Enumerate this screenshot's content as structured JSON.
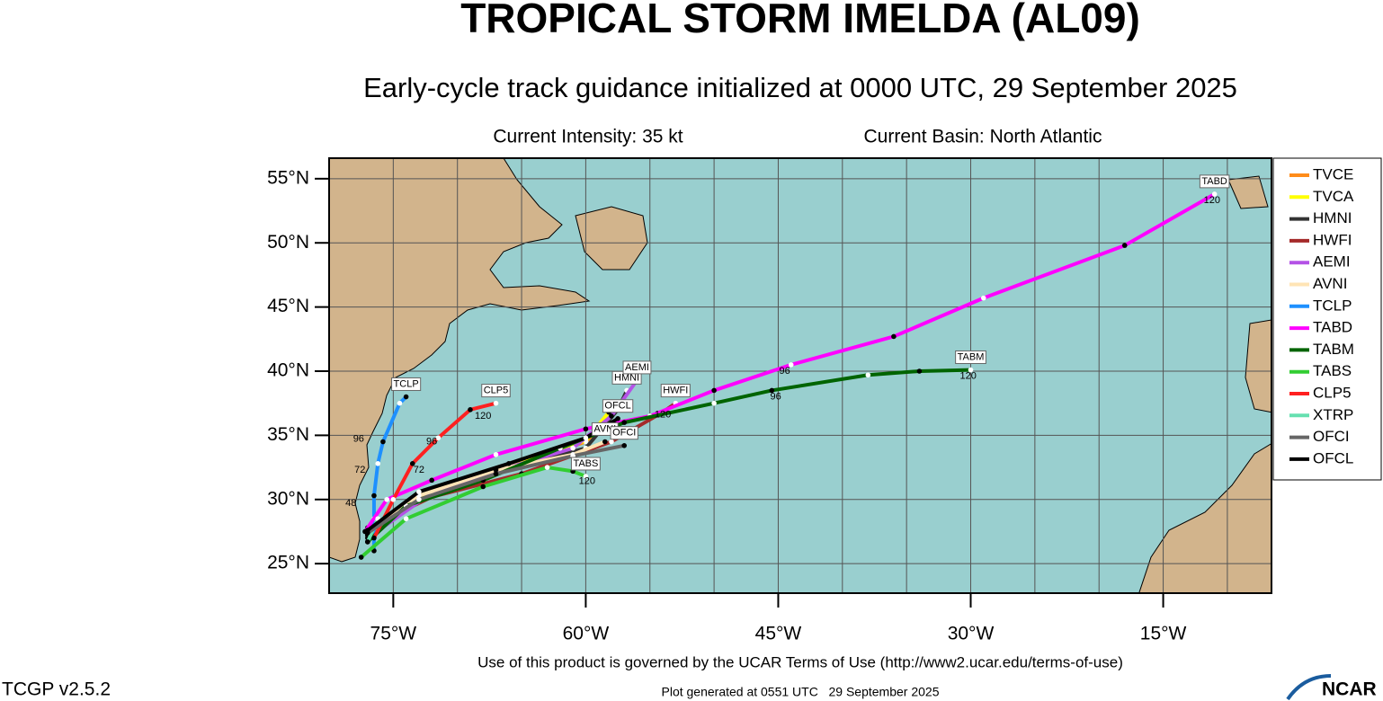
{
  "chart_data": {
    "type": "track-map",
    "title": "TROPICAL STORM IMELDA (AL09)",
    "subtitle": "Early-cycle track guidance initialized at 0000 UTC, 29 September 2025",
    "intensity": "Current Intensity: 35 kt",
    "basin": "Current Basin: North Atlantic",
    "xlim": [
      -80,
      -6.56
    ],
    "ylim": [
      22.7,
      56.6
    ],
    "xticks": [
      {
        "value": -75,
        "label": "75°W"
      },
      {
        "value": -60,
        "label": "60°W"
      },
      {
        "value": -45,
        "label": "45°W"
      },
      {
        "value": -30,
        "label": "30°W"
      },
      {
        "value": -15,
        "label": "15°W"
      }
    ],
    "yticks": [
      {
        "value": 25,
        "label": "25°N"
      },
      {
        "value": 30,
        "label": "30°N"
      },
      {
        "value": 35,
        "label": "35°N"
      },
      {
        "value": 40,
        "label": "40°N"
      },
      {
        "value": 45,
        "label": "45°N"
      },
      {
        "value": 50,
        "label": "50°N"
      },
      {
        "value": 55,
        "label": "55°N"
      }
    ],
    "x_gridlines": [
      -75,
      -70,
      -65,
      -60,
      -55,
      -50,
      -45,
      -40,
      -35,
      -30,
      -25,
      -20,
      -15,
      -10
    ],
    "grid": true,
    "series": [
      {
        "name": "TVCE",
        "color": "#ff8c1a",
        "x": [
          -76.8,
          -73,
          -66,
          -60,
          -58
        ],
        "y": [
          27.6,
          30,
          32.5,
          34.5,
          36.5
        ],
        "label": false
      },
      {
        "name": "TVCA",
        "color": "#ffff00",
        "x": [
          -76.8,
          -73,
          -66,
          -60,
          -58.2
        ],
        "y": [
          27.5,
          30.1,
          32.6,
          34.6,
          36.8
        ],
        "label": false
      },
      {
        "name": "HMNI",
        "color": "#333333",
        "x": [
          -77,
          -73,
          -66,
          -60,
          -57.5,
          -56.8
        ],
        "y": [
          27.3,
          30.5,
          32.5,
          34,
          37,
          38.5
        ],
        "label": true
      },
      {
        "name": "HWFI",
        "color": "#a52a2a",
        "x": [
          -77,
          -72,
          -65,
          -58,
          -54,
          -53
        ],
        "y": [
          27.8,
          30.2,
          32,
          34.5,
          36.8,
          37.5
        ],
        "label": true
      },
      {
        "name": "AEMI",
        "color": "#b452e6",
        "x": [
          -77,
          -72,
          -66,
          -61,
          -58,
          -56
        ],
        "y": [
          27,
          30.5,
          32.5,
          34,
          36.5,
          39.3
        ],
        "label": true
      },
      {
        "name": "AVNI",
        "color": "#ffe4b5",
        "x": [
          -77,
          -73,
          -67,
          -61,
          -58.5
        ],
        "y": [
          27.2,
          30.3,
          32.3,
          33.5,
          34.5
        ],
        "label": true
      },
      {
        "name": "TCLP",
        "color": "#1e90ff",
        "x": [
          -76.5,
          -76.5,
          -76.5,
          -76.2,
          -75.8,
          -74.5,
          -74
        ],
        "y": [
          26,
          28.5,
          30.3,
          32.8,
          34.5,
          37.5,
          38
        ],
        "label": true
      },
      {
        "name": "TABD",
        "color": "#ff00ff",
        "x": [
          -77.2,
          -75.5,
          -72,
          -67,
          -60,
          -55,
          -50,
          -44,
          -36,
          -29,
          -18,
          -11
        ],
        "y": [
          27.5,
          30,
          31.5,
          33.5,
          35.5,
          36.5,
          38.5,
          40.5,
          42.7,
          45.7,
          49.8,
          53.8
        ],
        "label": true
      },
      {
        "name": "TABM",
        "color": "#006400",
        "x": [
          -77,
          -74,
          -68,
          -62,
          -57,
          -50,
          -45.5,
          -38,
          -34,
          -30
        ],
        "y": [
          26.7,
          29.5,
          31.5,
          34,
          36,
          37.5,
          38.5,
          39.7,
          40,
          40.1
        ],
        "label": true
      },
      {
        "name": "TABS",
        "color": "#32cd32",
        "x": [
          -77.5,
          -74,
          -68,
          -63,
          -61,
          -60
        ],
        "y": [
          25.5,
          28.5,
          31,
          32.5,
          32.2,
          31.8
        ],
        "label": true
      },
      {
        "name": "CLP5",
        "color": "#ff2020",
        "x": [
          -76.5,
          -75,
          -73.5,
          -71.5,
          -69,
          -67
        ],
        "y": [
          27,
          30,
          32.8,
          34.8,
          37,
          37.5
        ],
        "label": true
      },
      {
        "name": "XTRP",
        "color": "#66e0b0",
        "x": [
          -77,
          -76.2
        ],
        "y": [
          26.7,
          28.5
        ],
        "label": false
      },
      {
        "name": "OFCI",
        "color": "#666666",
        "x": [
          -77,
          -73,
          -67,
          -61,
          -57
        ],
        "y": [
          27.4,
          30,
          32,
          33.4,
          34.2
        ],
        "label": true
      },
      {
        "name": "OFCL",
        "color": "#000000",
        "x": [
          -77,
          -73,
          -66,
          -60,
          -57.5
        ],
        "y": [
          27.6,
          30.6,
          32.8,
          34.8,
          36.3
        ],
        "label": true
      }
    ],
    "hour_labels": [
      {
        "x": -44.5,
        "y": 40,
        "hour": 96
      },
      {
        "x": -11.2,
        "y": 53.3,
        "hour": 120
      },
      {
        "x": -45.2,
        "y": 38,
        "hour": 96
      },
      {
        "x": -30.2,
        "y": 39.6,
        "hour": 120
      },
      {
        "x": -68,
        "y": 36.5,
        "hour": 120
      },
      {
        "x": -72,
        "y": 34.5,
        "hour": 96
      },
      {
        "x": -73,
        "y": 32.3,
        "hour": 72
      },
      {
        "x": -77.7,
        "y": 34.7,
        "hour": 96
      },
      {
        "x": -77.6,
        "y": 32.3,
        "hour": 72
      },
      {
        "x": -78.3,
        "y": 29.7,
        "hour": 48
      },
      {
        "x": -59.9,
        "y": 31.4,
        "hour": 120
      },
      {
        "x": -54,
        "y": 36.6,
        "hour": 120
      }
    ]
  },
  "footer": {
    "terms": "Use of this product is governed by the UCAR Terms of Use (http://www2.ucar.edu/terms-of-use)",
    "generated": "Plot generated at 0551 UTC   29 September 2025",
    "version": "TCGP v2.5.2",
    "logo": "NCAR"
  }
}
